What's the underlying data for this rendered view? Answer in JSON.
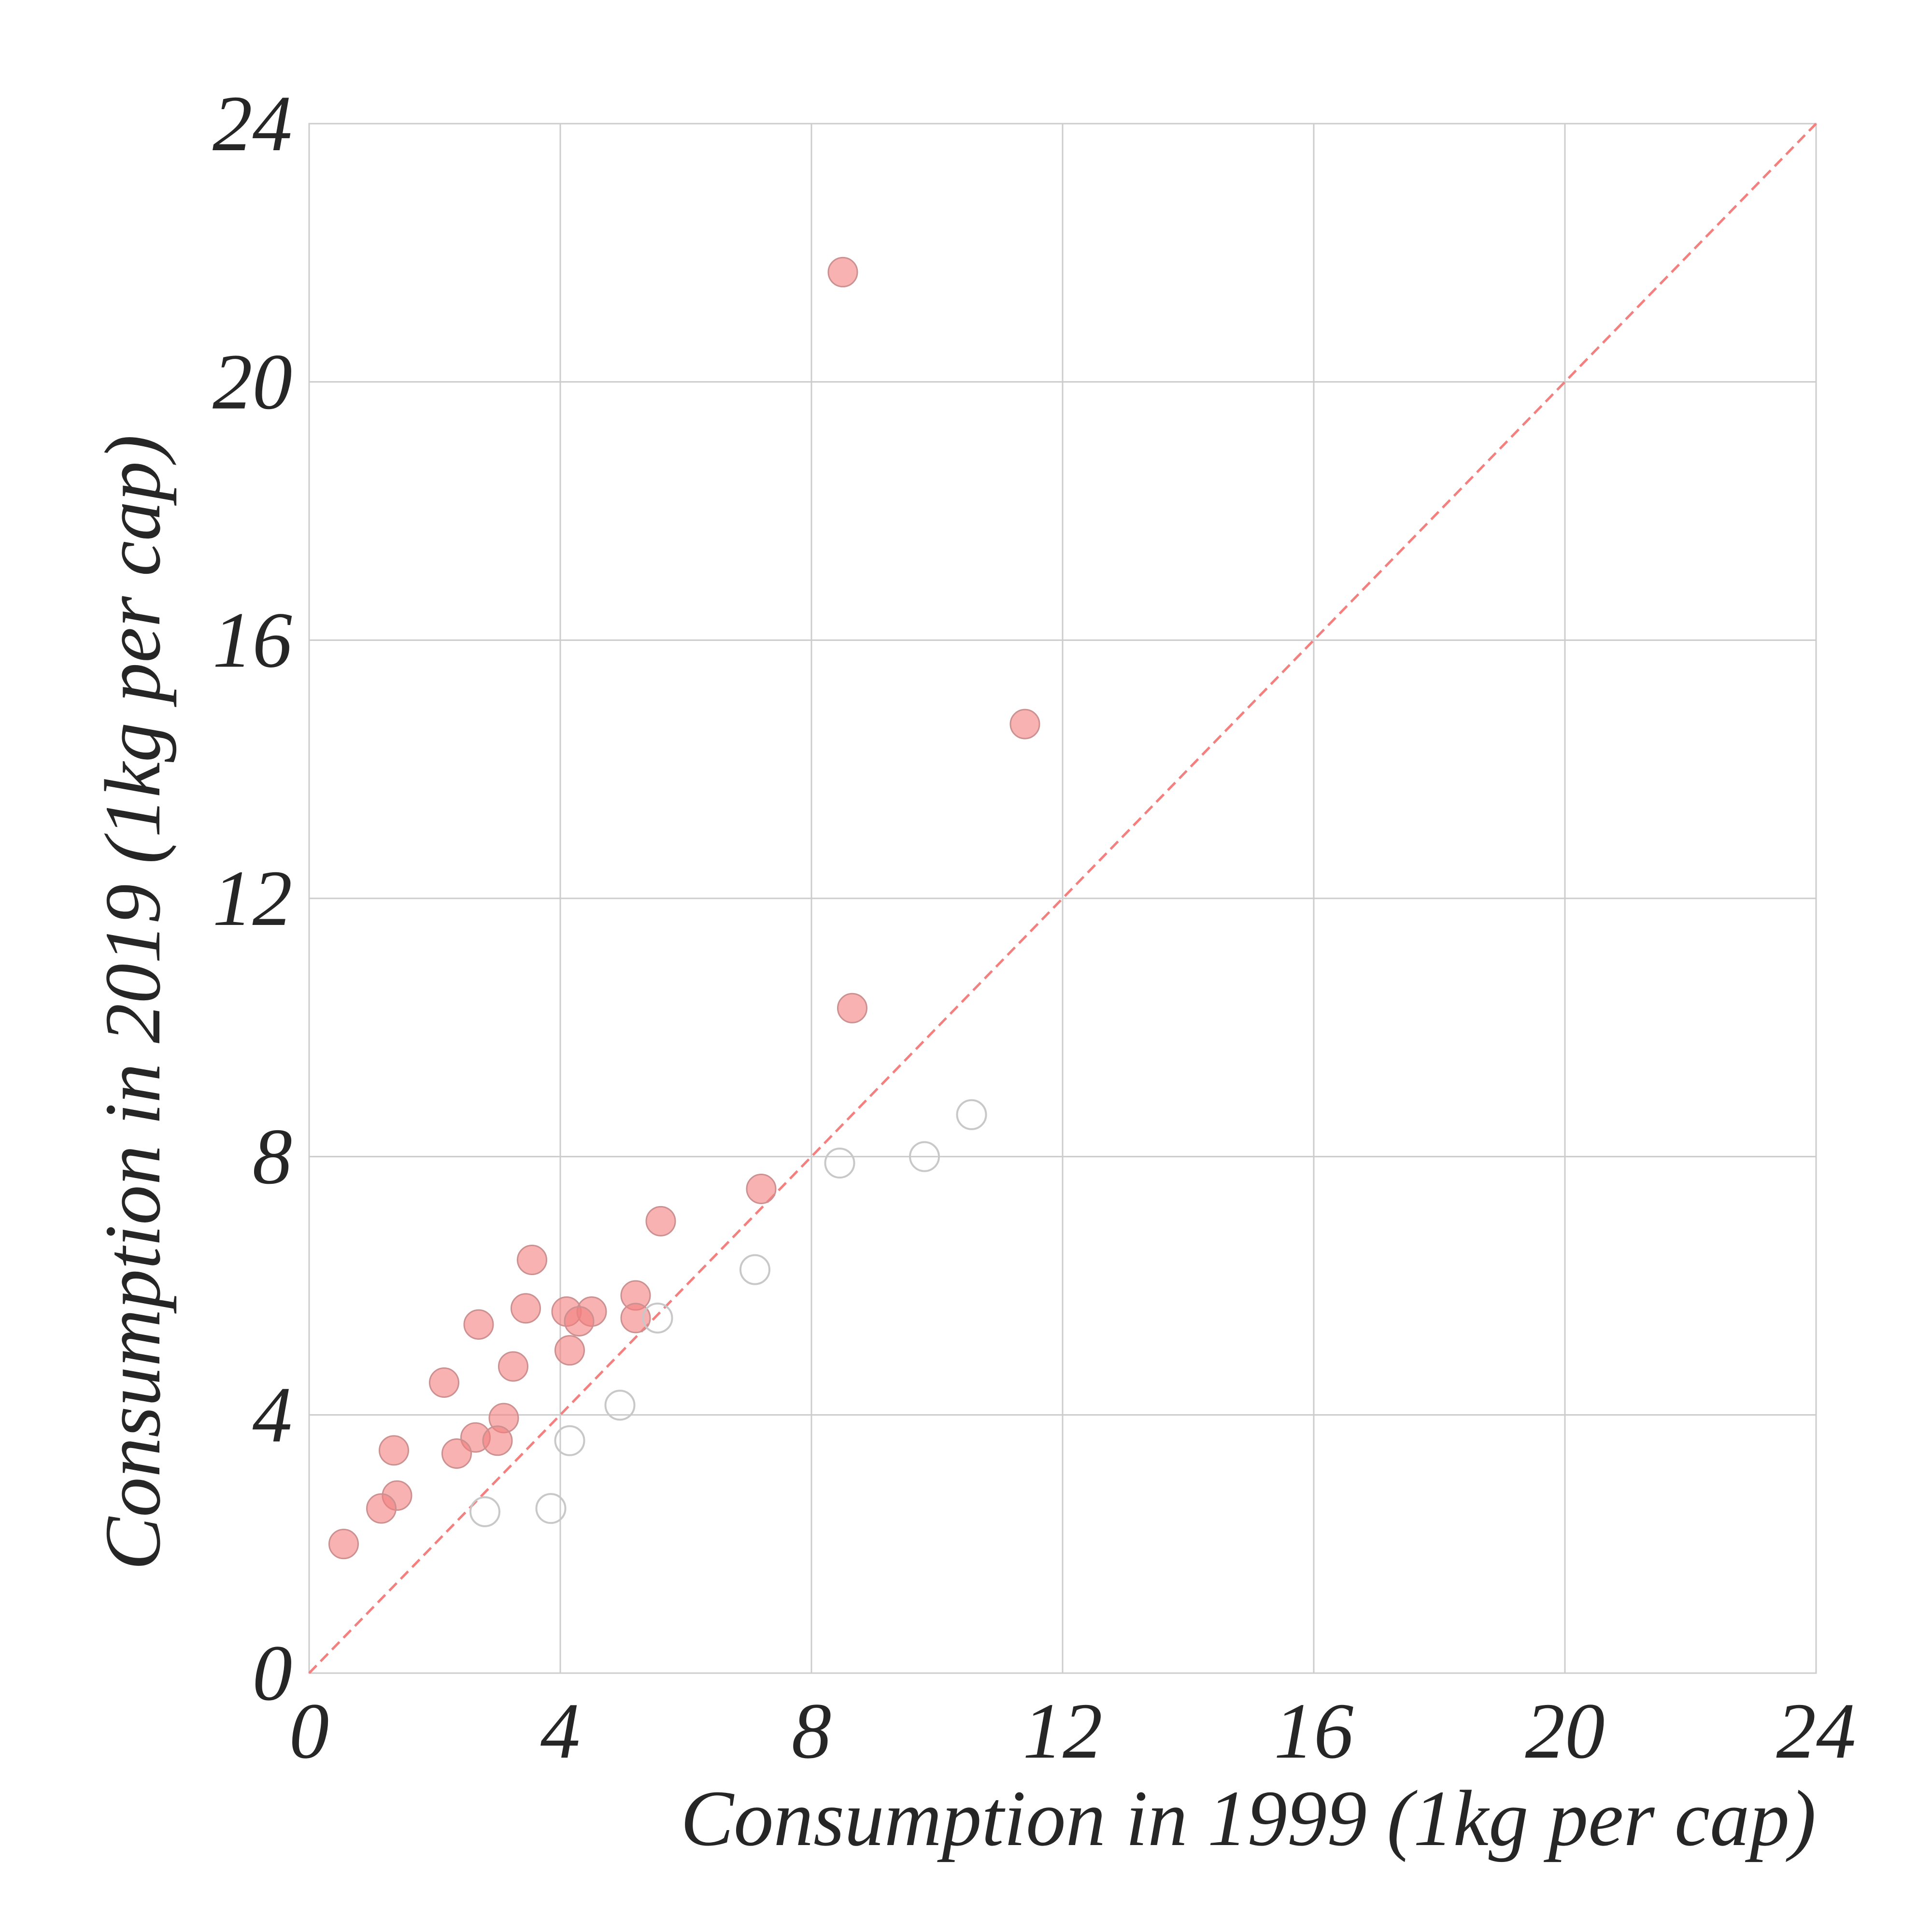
{
  "chart_data": {
    "type": "scatter",
    "title": "",
    "xlabel": "Consumption in 1999 (1kg per cap)",
    "ylabel": "Consumption in 2019 (1kg per cap)",
    "xlim": [
      0,
      24
    ],
    "ylim": [
      0,
      24
    ],
    "x_ticks": [
      "0",
      "4",
      "8",
      "12",
      "16",
      "20",
      "24"
    ],
    "y_ticks": [
      "0",
      "4",
      "8",
      "12",
      "16",
      "20",
      "24"
    ],
    "grid": true,
    "reference_line": {
      "from": [
        0,
        0
      ],
      "to": [
        24,
        24
      ],
      "style": "dashed",
      "color": "#f47f7f"
    },
    "colors": {
      "filled": "#f47f7f",
      "hollow": "#c8c8c8"
    },
    "series": [
      {
        "style": "filled",
        "points": [
          [
            8.5,
            21.7
          ],
          [
            11.4,
            14.7
          ],
          [
            8.65,
            10.3
          ],
          [
            7.2,
            7.5
          ],
          [
            5.6,
            7.0
          ],
          [
            3.55,
            6.4
          ],
          [
            5.2,
            5.85
          ],
          [
            3.45,
            5.65
          ],
          [
            4.1,
            5.6
          ],
          [
            4.5,
            5.6
          ],
          [
            4.3,
            5.45
          ],
          [
            5.2,
            5.5
          ],
          [
            2.7,
            5.4
          ],
          [
            4.15,
            5.0
          ],
          [
            3.25,
            4.75
          ],
          [
            2.15,
            4.5
          ],
          [
            3.1,
            3.95
          ],
          [
            2.65,
            3.65
          ],
          [
            3.0,
            3.6
          ],
          [
            2.35,
            3.4
          ],
          [
            1.35,
            3.45
          ],
          [
            1.4,
            2.75
          ],
          [
            1.15,
            2.55
          ],
          [
            0.55,
            2.0
          ]
        ]
      },
      {
        "style": "hollow",
        "points": [
          [
            10.55,
            8.65
          ],
          [
            9.8,
            8.0
          ],
          [
            8.45,
            7.9
          ],
          [
            7.1,
            6.25
          ],
          [
            5.55,
            5.5
          ],
          [
            4.95,
            4.15
          ],
          [
            4.15,
            3.6
          ],
          [
            3.85,
            2.55
          ],
          [
            2.8,
            2.5
          ]
        ]
      }
    ]
  }
}
